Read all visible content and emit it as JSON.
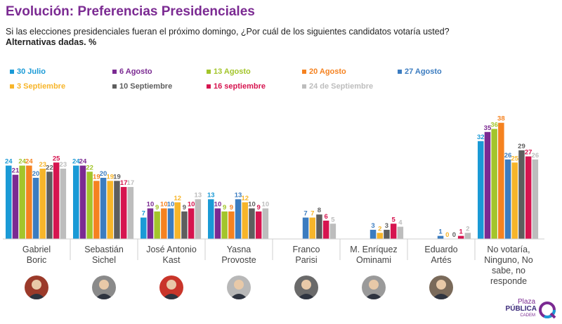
{
  "title": "Evolución: Preferencias Presidenciales",
  "subtitle": "Si las elecciones presidenciales fueran el próximo domingo, ¿Por cuál de los siguientes candidatos votaría usted?",
  "subtitle2": "Alternativas dadas. %",
  "legend": [
    {
      "label": "30 Julio",
      "color": "#1a9ad6"
    },
    {
      "label": "6 Agosto",
      "color": "#7b2a92"
    },
    {
      "label": "13 Agosto",
      "color": "#a3c52b"
    },
    {
      "label": "20 Agosto",
      "color": "#f58220"
    },
    {
      "label": "27 Agosto",
      "color": "#3b7cc0"
    },
    {
      "label": "3 Septiembre",
      "color": "#f7b52a"
    },
    {
      "label": "10 Septiembre",
      "color": "#5e5e5e"
    },
    {
      "label": "16 septiembre",
      "color": "#d6144f"
    },
    {
      "label": "24 de Septiembre",
      "color": "#bdbdbd"
    }
  ],
  "candidates": [
    {
      "name": "Gabriel Boric",
      "label": [
        "Gabriel",
        "Boric"
      ],
      "avatar_bg": "#9b3a2a"
    },
    {
      "name": "Sebastián Sichel",
      "label": [
        "Sebastián",
        "Sichel"
      ],
      "avatar_bg": "#8a8a8a"
    },
    {
      "name": "José Antonio Kast",
      "label": [
        "José Antonio",
        "Kast"
      ],
      "avatar_bg": "#c9352a"
    },
    {
      "name": "Yasna Provoste",
      "label": [
        "Yasna",
        "Provoste"
      ],
      "avatar_bg": "#b8b8b8"
    },
    {
      "name": "Franco Parisi",
      "label": [
        "Franco",
        "Parisi"
      ],
      "avatar_bg": "#6a6a6a"
    },
    {
      "name": "M. Enríquez Ominami",
      "label": [
        "M. Enríquez",
        "Ominami"
      ],
      "avatar_bg": "#9a9a9a"
    },
    {
      "name": "Eduardo Artés",
      "label": [
        "Eduardo",
        "Artés"
      ],
      "avatar_bg": "#7a6a5a"
    },
    {
      "name": "No votaría, Ninguno, No sabe, no responde",
      "label": [
        "No votaría,",
        "Ninguno, No",
        "sabe, no",
        "responde"
      ],
      "avatar_bg": ""
    }
  ],
  "chart_data": {
    "type": "bar",
    "categories": [
      "Gabriel Boric",
      "Sebastián Sichel",
      "José Antonio Kast",
      "Yasna Provoste",
      "Franco Parisi",
      "M. Enríquez Ominami",
      "Eduardo Artés",
      "No votaría, Ninguno, No sabe, no responde"
    ],
    "series": [
      {
        "name": "30 Julio",
        "values": [
          24,
          24,
          7,
          13,
          null,
          null,
          null,
          32
        ]
      },
      {
        "name": "6 Agosto",
        "values": [
          21,
          24,
          10,
          10,
          null,
          null,
          null,
          35
        ]
      },
      {
        "name": "13 Agosto",
        "values": [
          24,
          22,
          9,
          9,
          null,
          null,
          null,
          36
        ]
      },
      {
        "name": "20 Agosto",
        "values": [
          24,
          19,
          10,
          9,
          null,
          null,
          null,
          38
        ]
      },
      {
        "name": "27 Agosto",
        "values": [
          20,
          20,
          10,
          13,
          7,
          3,
          1,
          26
        ]
      },
      {
        "name": "3 Septiembre",
        "values": [
          23,
          19,
          12,
          12,
          7,
          2,
          0,
          25
        ]
      },
      {
        "name": "10 Septiembre",
        "values": [
          22,
          19,
          9,
          10,
          8,
          3,
          0,
          29
        ]
      },
      {
        "name": "16 septiembre",
        "values": [
          25,
          17,
          10,
          9,
          6,
          5,
          1,
          27
        ]
      },
      {
        "name": "24 de Septiembre",
        "values": [
          23,
          17,
          13,
          10,
          5,
          4,
          2,
          26
        ]
      }
    ],
    "ylim": [
      0,
      40
    ]
  },
  "logo": {
    "line1": "Plaza",
    "line2": "PÚBLICA",
    "line3": "CADEM",
    "color": "#7b2a92"
  }
}
